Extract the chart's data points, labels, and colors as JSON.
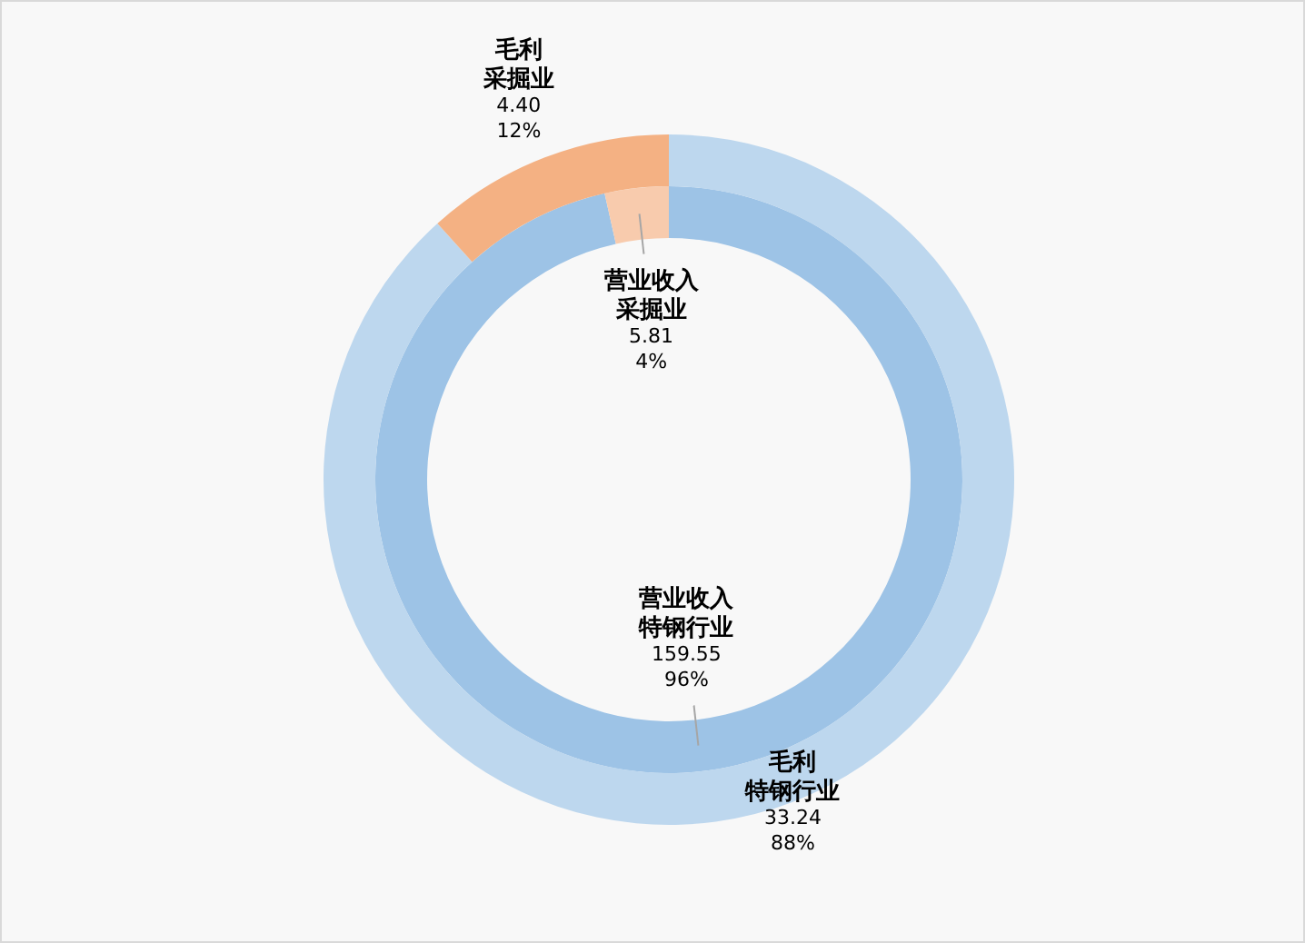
{
  "chart_data": {
    "type": "donut",
    "categories": [
      "特钢行业",
      "采掘业"
    ],
    "series": [
      {
        "name": "营业收入",
        "values": [
          159.55,
          5.81
        ],
        "colors": [
          "#9dc3e6",
          "#f8cbad"
        ],
        "value_labels": [
          "159.55\n96%",
          "5.81\n4%"
        ]
      },
      {
        "name": "毛利",
        "values": [
          33.24,
          4.4
        ],
        "colors": [
          "#bdd7ee",
          "#f4b183"
        ],
        "value_labels": [
          "33.24\n88%",
          "4.40\n12%"
        ]
      }
    ]
  }
}
